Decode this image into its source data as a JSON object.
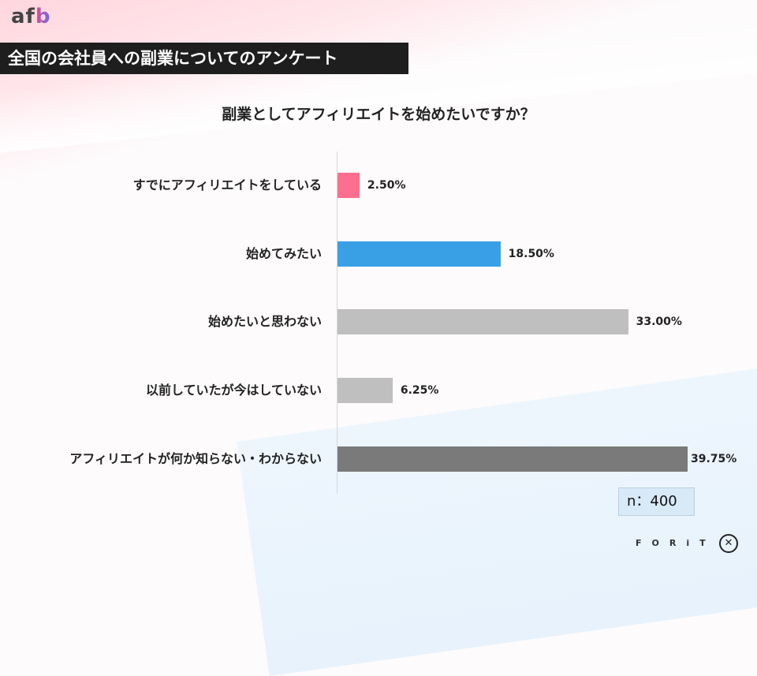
{
  "brand": {
    "logo_prefix": "af",
    "logo_suffix": "b"
  },
  "header": {
    "title": "全国の会社員への副業についてのアンケート"
  },
  "sample": {
    "label": "n：400"
  },
  "footer": {
    "brand": "FORiT",
    "icon": "forit-x-icon"
  },
  "colors": {
    "pink": "#fd6f8e",
    "blue": "#3aa0e6",
    "light_gray": "#bfbfbf",
    "dark_gray": "#7a7a7a"
  },
  "chart_data": {
    "type": "bar",
    "orientation": "horizontal",
    "title": "副業としてアフィリエイトを始めたいですか？",
    "xlabel": "",
    "ylabel": "",
    "grid": false,
    "legend": false,
    "unit": "%",
    "categories": [
      "すでにアフィリエイトをしている",
      "始めてみたい",
      "始めたいと思わない",
      "以前していたが今はしていない",
      "アフィリエイトが何か知らない・わからない"
    ],
    "values": [
      2.5,
      18.5,
      33.0,
      6.25,
      39.75
    ],
    "value_labels": [
      "2.50%",
      "18.50%",
      "33.00%",
      "6.25%",
      "39.75%"
    ],
    "bar_colors": [
      "#fd6f8e",
      "#3aa0e6",
      "#bfbfbf",
      "#bfbfbf",
      "#7a7a7a"
    ],
    "n": 400
  }
}
